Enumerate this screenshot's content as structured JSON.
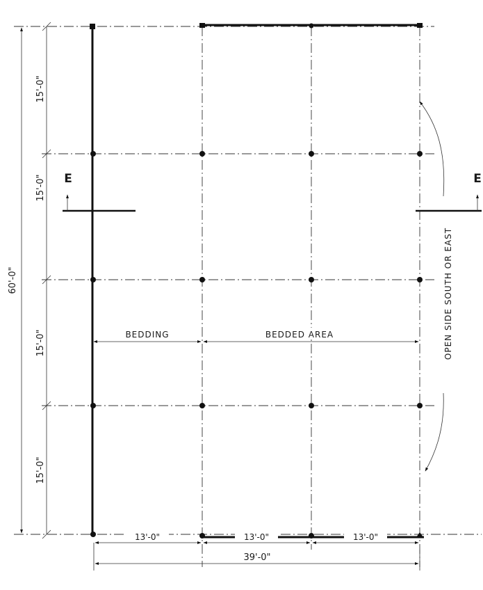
{
  "dimensions": {
    "overall_depth": "60'-0\"",
    "bay_depths": [
      "15'-0\"",
      "15'-0\"",
      "15'-0\"",
      "15'-0\""
    ],
    "bay_widths": [
      "13'-0\"",
      "13'-0\"",
      "13'-0\""
    ],
    "overall_width": "39'-0\""
  },
  "areas": {
    "bedding": "BEDDING",
    "bedded_area": "BEDDED AREA"
  },
  "section_marks": {
    "left": "E",
    "right": "E"
  },
  "note": "OPEN SIDE SOUTH OR EAST"
}
